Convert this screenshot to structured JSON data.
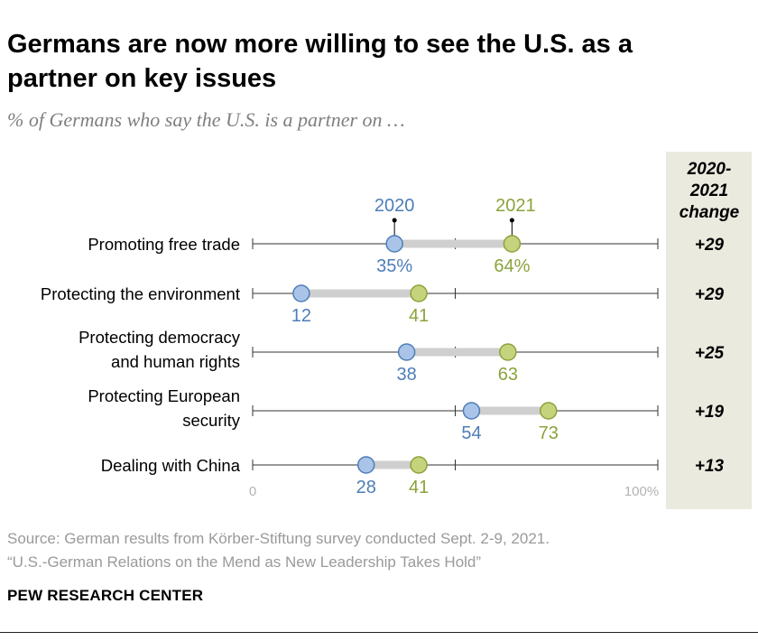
{
  "header": {
    "title": "Germans are now more willing to see the U.S. as a partner on key issues",
    "subtitle": "% of Germans who say the U.S. is a partner on …"
  },
  "change_header": {
    "line1": "2020-",
    "line2": "2021",
    "line3": "change"
  },
  "chart_data": {
    "type": "dot",
    "xlim": [
      0,
      100
    ],
    "tick_labels": {
      "min": "0",
      "max": "100%"
    },
    "series": [
      {
        "name": "2020",
        "color": "#4e7db8",
        "fill": "#a9c4e8"
      },
      {
        "name": "2021",
        "color": "#8aa33b",
        "fill": "#c5d47c"
      }
    ],
    "categories": [
      {
        "label": [
          "Promoting free trade"
        ],
        "v2020": 35,
        "v2021": 64,
        "l2020": "35%",
        "l2021": "64%",
        "change": "+29"
      },
      {
        "label": [
          "Protecting the environment"
        ],
        "v2020": 12,
        "v2021": 41,
        "l2020": "12",
        "l2021": "41",
        "change": "+29"
      },
      {
        "label": [
          "Protecting democracy",
          "and human rights"
        ],
        "v2020": 38,
        "v2021": 63,
        "l2020": "38",
        "l2021": "63",
        "change": "+25"
      },
      {
        "label": [
          "Protecting European",
          "security"
        ],
        "v2020": 54,
        "v2021": 73,
        "l2020": "54",
        "l2021": "73",
        "change": "+19"
      },
      {
        "label": [
          "Dealing with China"
        ],
        "v2020": 28,
        "v2021": 41,
        "l2020": "28",
        "l2021": "41",
        "change": "+13"
      }
    ]
  },
  "footer": {
    "source": "Source: German results from Körber-Stiftung survey conducted Sept. 2-9, 2021.",
    "report": "“U.S.-German Relations on the Mend as New Leadership Takes Hold”",
    "brand": "PEW RESEARCH CENTER"
  }
}
